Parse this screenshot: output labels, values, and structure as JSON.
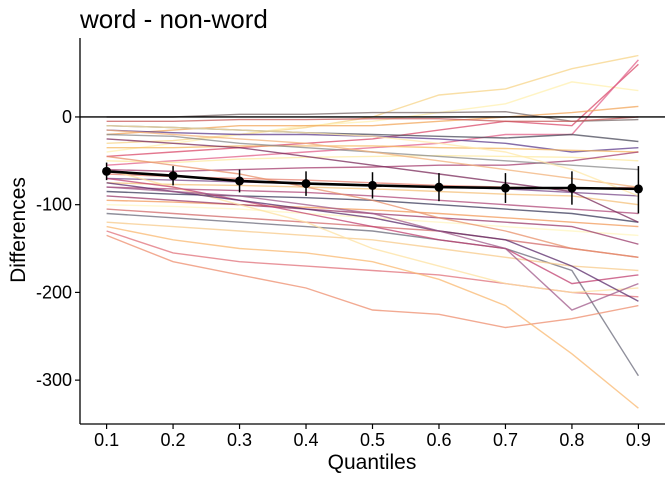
{
  "chart_data": {
    "type": "line",
    "title": "word - non-word",
    "xlabel": "Quantiles",
    "ylabel": "Differences",
    "x": [
      0.1,
      0.2,
      0.3,
      0.4,
      0.5,
      0.6,
      0.7,
      0.8,
      0.9
    ],
    "x_tick_labels": [
      "0.1",
      "0.2",
      "0.3",
      "0.4",
      "0.5",
      "0.6",
      "0.7",
      "0.8",
      "0.9"
    ],
    "y_ticks": [
      0,
      -100,
      -200,
      -300
    ],
    "y_tick_labels": [
      "0",
      "-100",
      "-200",
      "-300"
    ],
    "xlim": [
      0.06,
      0.94
    ],
    "ylim": [
      -350,
      90
    ],
    "grid": false,
    "reference_line_y": 0,
    "participant_lines": [
      {
        "color": "#F7D488",
        "values": [
          -30,
          -27,
          -20,
          -12,
          0,
          25,
          32,
          55,
          70
        ]
      },
      {
        "color": "#FFF0B0",
        "values": [
          -40,
          -30,
          -20,
          -10,
          -5,
          5,
          15,
          40,
          30
        ]
      },
      {
        "color": "#D94A6A",
        "values": [
          -45,
          -40,
          -35,
          -30,
          -25,
          -15,
          -5,
          -10,
          60
        ]
      },
      {
        "color": "#E1608A",
        "values": [
          -55,
          -50,
          -45,
          -40,
          -35,
          -30,
          -20,
          -20,
          65
        ]
      },
      {
        "color": "#F2A65A",
        "values": [
          -20,
          -15,
          -10,
          -10,
          -10,
          -5,
          0,
          5,
          12
        ]
      },
      {
        "color": "#7A6A6A",
        "values": [
          0,
          0,
          3,
          3,
          5,
          5,
          6,
          -5,
          -3
        ]
      },
      {
        "color": "#C85A5A",
        "values": [
          -5,
          -5,
          -3,
          -3,
          -2,
          -2,
          -5,
          -5,
          0
        ]
      },
      {
        "color": "#5E3C8C",
        "values": [
          -15,
          -18,
          -20,
          -20,
          -22,
          -25,
          -30,
          -40,
          -35
        ]
      },
      {
        "color": "#4A4A5A",
        "values": [
          -10,
          -12,
          -15,
          -18,
          -20,
          -22,
          -24,
          -20,
          -28
        ]
      },
      {
        "color": "#F5B860",
        "values": [
          -35,
          -35,
          -33,
          -33,
          -33,
          -35,
          -36,
          -38,
          -40
        ]
      },
      {
        "color": "#FCEAA0",
        "values": [
          -50,
          -52,
          -48,
          -46,
          -45,
          -44,
          -45,
          -46,
          -50
        ]
      },
      {
        "color": "#A43C6E",
        "values": [
          -60,
          -62,
          -60,
          -58,
          -57,
          -55,
          -55,
          -50,
          -40
        ]
      },
      {
        "color": "#8A8A8A",
        "values": [
          -20,
          -22,
          -30,
          -35,
          -40,
          -45,
          -50,
          -55,
          -60
        ]
      },
      {
        "color": "#E58070",
        "values": [
          -65,
          -68,
          -70,
          -72,
          -75,
          -78,
          -80,
          -82,
          -80
        ]
      },
      {
        "color": "#7A4A8A",
        "values": [
          -70,
          -72,
          -74,
          -76,
          -78,
          -80,
          -82,
          -86,
          -90
        ]
      },
      {
        "color": "#F4C07A",
        "values": [
          -75,
          -77,
          -78,
          -80,
          -82,
          -85,
          -88,
          -90,
          -100
        ]
      },
      {
        "color": "#B04A7A",
        "values": [
          -80,
          -82,
          -84,
          -86,
          -90,
          -95,
          -100,
          -105,
          -110
        ]
      },
      {
        "color": "#3A3A5A",
        "values": [
          -85,
          -88,
          -90,
          -92,
          -95,
          -100,
          -105,
          -110,
          -120
        ]
      },
      {
        "color": "#F29A5A",
        "values": [
          -95,
          -97,
          -100,
          -103,
          -106,
          -110,
          -115,
          -120,
          -125
        ]
      },
      {
        "color": "#FFF5C0",
        "values": [
          -100,
          -102,
          -105,
          -110,
          -115,
          -120,
          -125,
          -130,
          -135
        ]
      },
      {
        "color": "#9A3A6A",
        "values": [
          -90,
          -95,
          -100,
          -105,
          -110,
          -115,
          -120,
          -125,
          -145
        ]
      },
      {
        "color": "#D26A6A",
        "values": [
          -105,
          -110,
          -115,
          -120,
          -125,
          -130,
          -140,
          -150,
          -160
        ]
      },
      {
        "color": "#6A6A7A",
        "values": [
          -110,
          -115,
          -120,
          -125,
          -130,
          -140,
          -150,
          -175,
          -295
        ]
      },
      {
        "color": "#F7C98A",
        "values": [
          -120,
          -125,
          -130,
          -135,
          -140,
          -150,
          -160,
          -170,
          -175
        ]
      },
      {
        "color": "#E0707A",
        "values": [
          -130,
          -155,
          -165,
          -170,
          -175,
          -180,
          -190,
          -200,
          -205
        ]
      },
      {
        "color": "#EE8E6E",
        "values": [
          -135,
          -165,
          -180,
          -195,
          -220,
          -225,
          -240,
          -230,
          -215
        ]
      },
      {
        "color": "#F9B870",
        "values": [
          -125,
          -140,
          -150,
          -155,
          -165,
          -185,
          -215,
          -270,
          -332
        ]
      },
      {
        "color": "#FDE2A0",
        "values": [
          -60,
          -80,
          -100,
          -120,
          -150,
          -170,
          -190,
          -200,
          -195
        ]
      },
      {
        "color": "#C04070",
        "values": [
          -70,
          -80,
          -95,
          -110,
          -125,
          -140,
          -150,
          -190,
          -180
        ]
      },
      {
        "color": "#5A2A6A",
        "values": [
          -75,
          -85,
          -95,
          -105,
          -115,
          -130,
          -140,
          -170,
          -210
        ]
      },
      {
        "color": "#E8906A",
        "values": [
          -45,
          -55,
          -65,
          -80,
          -95,
          -115,
          -130,
          -150,
          -160
        ]
      },
      {
        "color": "#A05A8A",
        "values": [
          -80,
          -85,
          -90,
          -100,
          -110,
          -130,
          -150,
          -220,
          -190
        ]
      },
      {
        "color": "#F2B27A",
        "values": [
          -15,
          -20,
          -25,
          -30,
          -40,
          -50,
          -60,
          -70,
          -80
        ]
      },
      {
        "color": "#7A2A5A",
        "values": [
          -25,
          -30,
          -35,
          -45,
          -55,
          -65,
          -75,
          -85,
          -120
        ]
      },
      {
        "color": "#FFE8A8",
        "values": [
          -10,
          -12,
          -15,
          -18,
          -22,
          -30,
          -40,
          -60,
          -90
        ]
      }
    ],
    "mean_series": {
      "color": "#000000",
      "values": [
        -62,
        -67,
        -73,
        -76,
        -78,
        -80,
        -81,
        -81,
        -82
      ],
      "lower": [
        -72,
        -78,
        -86,
        -90,
        -93,
        -96,
        -98,
        -100,
        -110
      ],
      "upper": [
        -52,
        -56,
        -60,
        -62,
        -63,
        -64,
        -64,
        -62,
        -56
      ]
    }
  }
}
